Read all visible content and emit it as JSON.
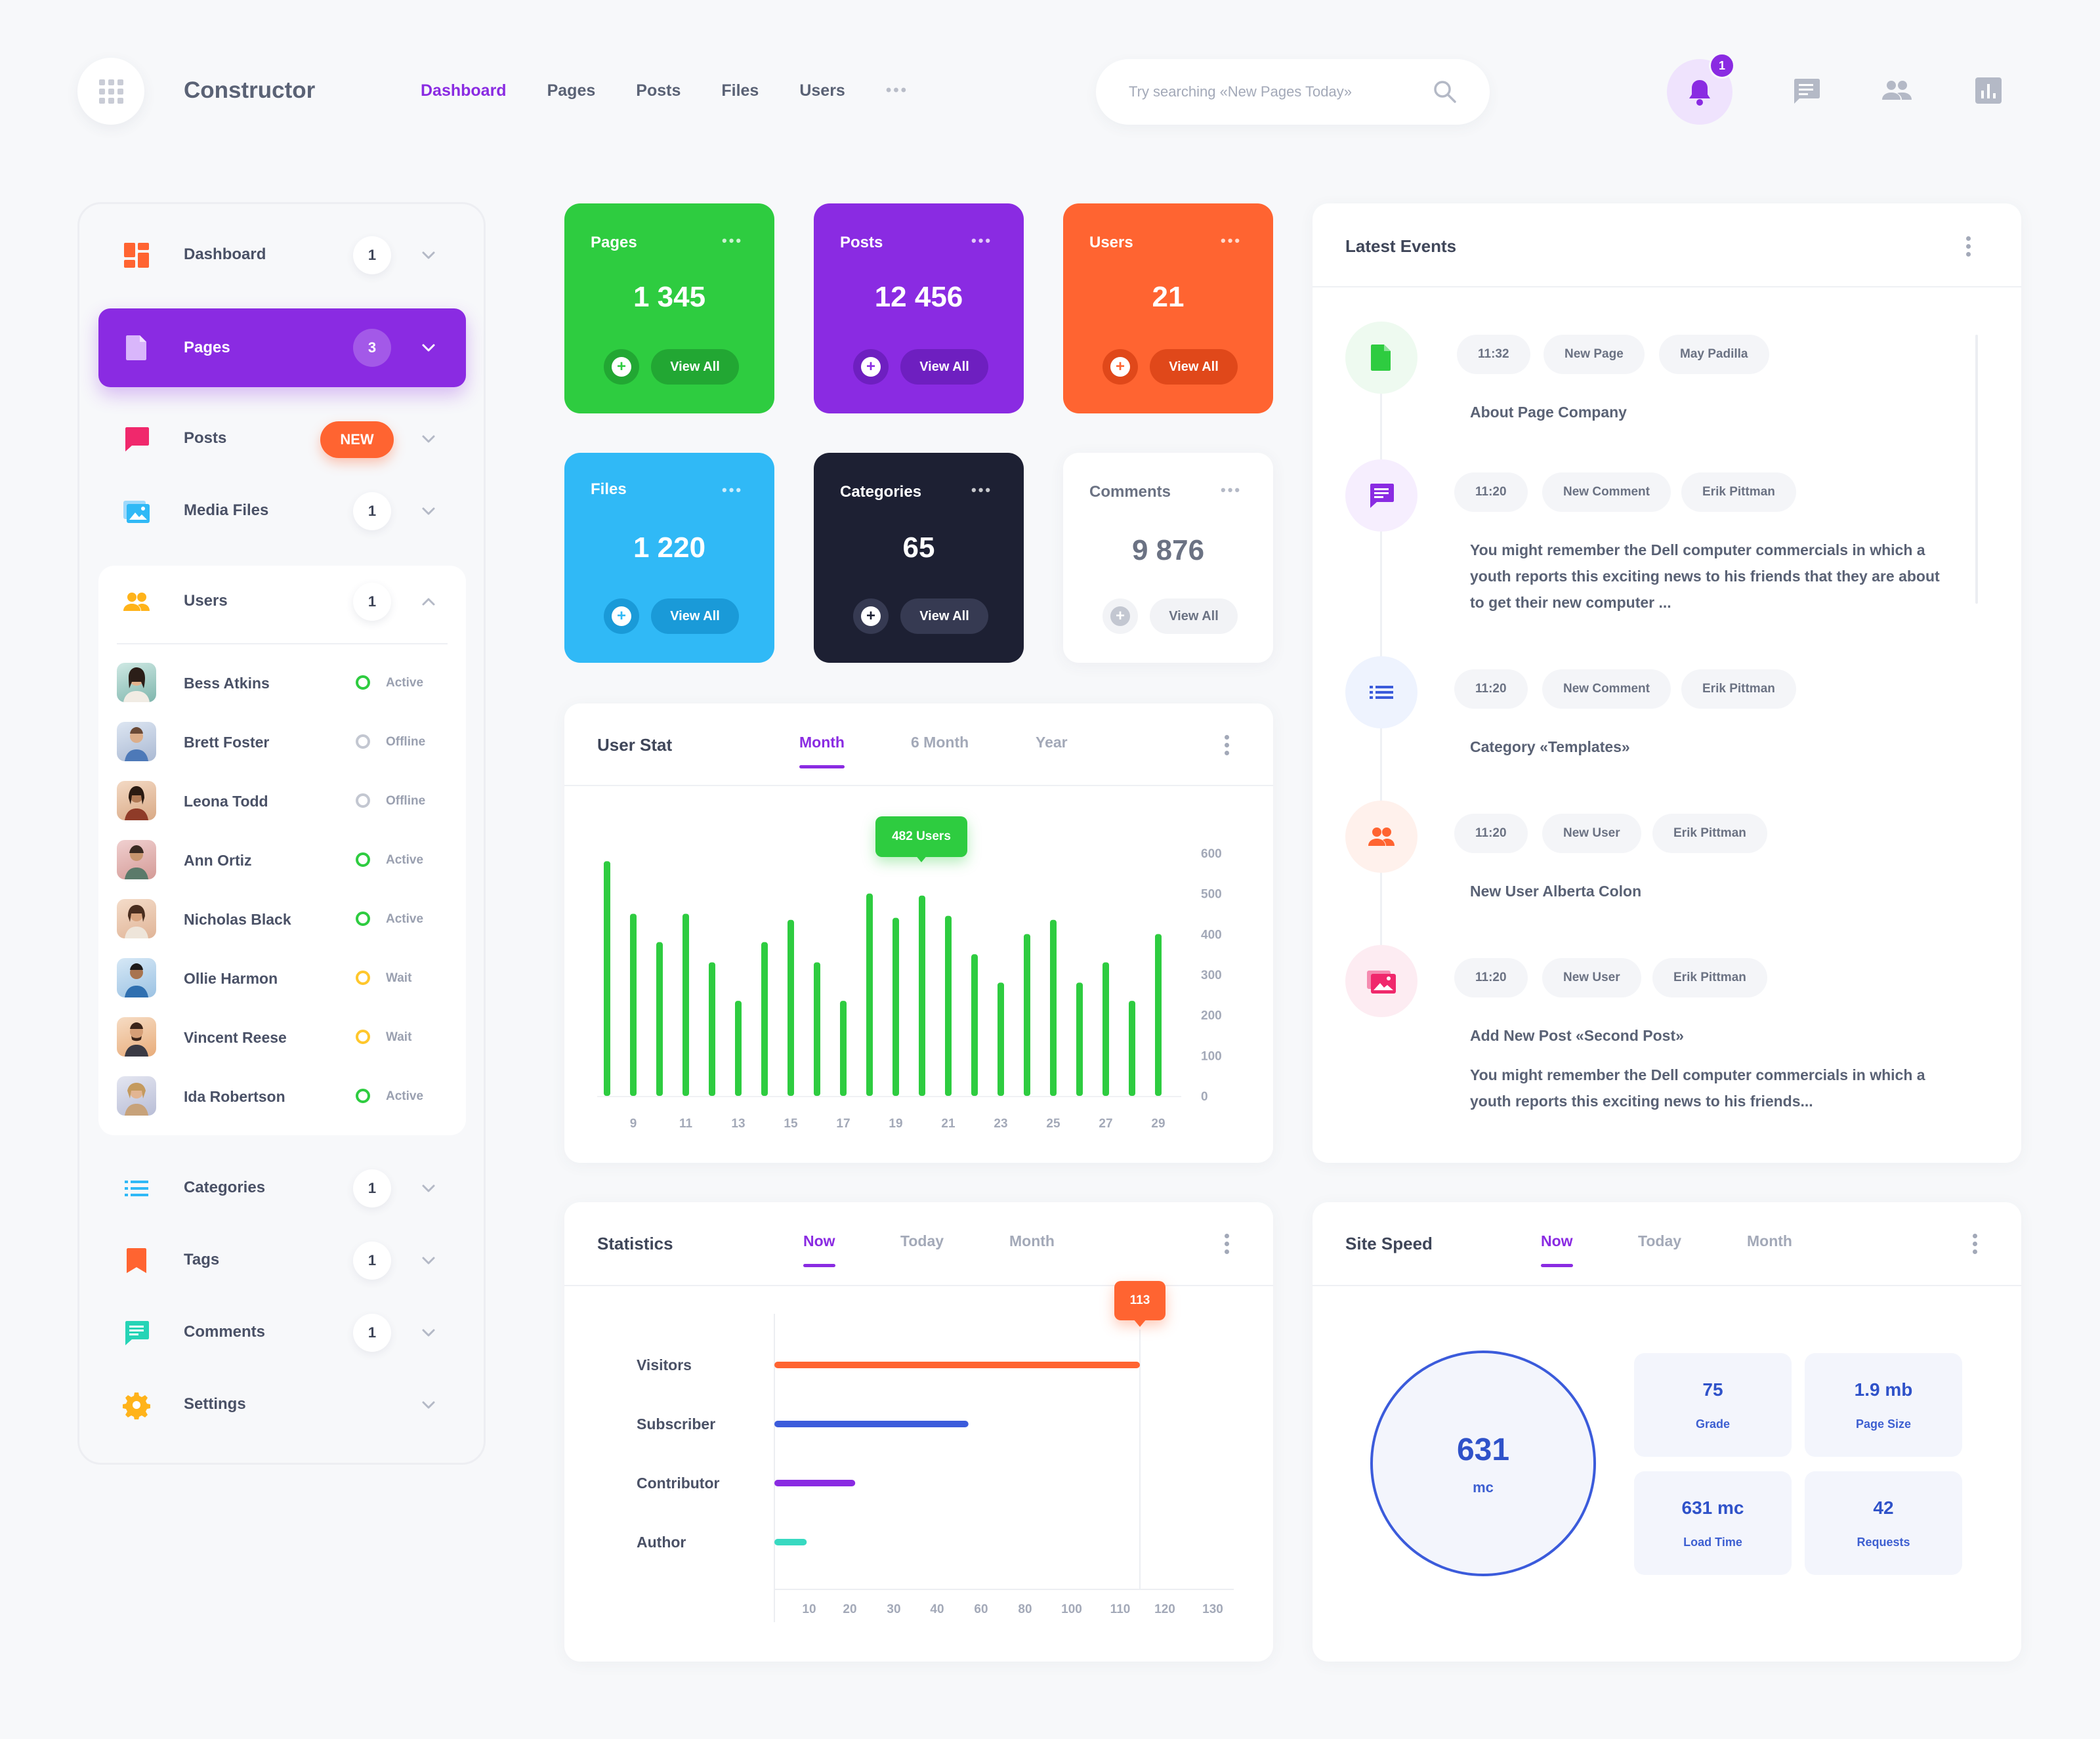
{
  "header": {
    "app_title": "Constructor",
    "nav": [
      {
        "label": "Dashboard",
        "active": true
      },
      {
        "label": "Pages",
        "active": false
      },
      {
        "label": "Posts",
        "active": false
      },
      {
        "label": "Files",
        "active": false
      },
      {
        "label": "Users",
        "active": false
      }
    ],
    "nav_more": "•••",
    "search_placeholder": "Try searching «New Pages Today»",
    "notification_count": "1",
    "accent": "#8a2be2"
  },
  "sidebar": {
    "items": [
      {
        "label": "Dashboard",
        "count": "1",
        "icon": "dashboard-icon"
      },
      {
        "label": "Pages",
        "count": "3",
        "icon": "page-icon",
        "active": true
      },
      {
        "label": "Posts",
        "badge": "NEW",
        "icon": "chat-bubble-icon"
      },
      {
        "label": "Media Files",
        "count": "1",
        "icon": "image-folder-icon"
      },
      {
        "label": "Users",
        "count": "1",
        "icon": "users-icon",
        "expanded": true
      },
      {
        "label": "Categories",
        "count": "1",
        "icon": "list-icon"
      },
      {
        "label": "Tags",
        "count": "1",
        "icon": "bookmark-icon"
      },
      {
        "label": "Comments",
        "count": "1",
        "icon": "comment-icon"
      },
      {
        "label": "Settings",
        "icon": "gear-icon"
      }
    ],
    "users": [
      {
        "name": "Bess Atkins",
        "status": "Active",
        "color": "#2ecc40"
      },
      {
        "name": "Brett Foster",
        "status": "Offline",
        "color": "#c3c7d1"
      },
      {
        "name": "Leona Todd",
        "status": "Offline",
        "color": "#c3c7d1"
      },
      {
        "name": "Ann Ortiz",
        "status": "Active",
        "color": "#2ecc40"
      },
      {
        "name": "Nicholas Black",
        "status": "Active",
        "color": "#2ecc40"
      },
      {
        "name": "Ollie Harmon",
        "status": "Wait",
        "color": "#ffc72c"
      },
      {
        "name": "Vincent Reese",
        "status": "Wait",
        "color": "#ffc72c"
      },
      {
        "name": "Ida Robertson",
        "status": "Active",
        "color": "#2ecc40"
      }
    ]
  },
  "stats": [
    {
      "title": "Pages",
      "value": "1 345",
      "action": "View All",
      "bg": "#2ecc40"
    },
    {
      "title": "Posts",
      "value": "12 456",
      "action": "View All",
      "bg": "#8a2be2"
    },
    {
      "title": "Users",
      "value": "21",
      "action": "View All",
      "bg": "#ff6431"
    },
    {
      "title": "Files",
      "value": "1 220",
      "action": "View All",
      "bg": "#30b9f6"
    },
    {
      "title": "Categories",
      "value": "65",
      "action": "View All",
      "bg": "#1d2033"
    },
    {
      "title": "Comments",
      "value": "9 876",
      "action": "View All",
      "bg": "#ffffff"
    }
  ],
  "user_stat": {
    "title": "User Stat",
    "tabs": [
      "Month",
      "6 Month",
      "Year"
    ],
    "active_tab": "Month",
    "tooltip": "482 Users"
  },
  "statistics": {
    "title": "Statistics",
    "tabs": [
      "Now",
      "Today",
      "Month"
    ],
    "tooltip": "113"
  },
  "events": {
    "title": "Latest Events",
    "items": [
      {
        "time": "11:32",
        "type": "New Page",
        "user": "May Padilla",
        "text": "About Page Company",
        "icon": "page-icon"
      },
      {
        "time": "11:20",
        "type": "New Comment",
        "user": "Erik Pittman",
        "text": "You might remember the Dell computer commercials in which a youth reports this exciting news to his friends that they are about to get their new computer ...",
        "icon": "comment-icon"
      },
      {
        "time": "11:20",
        "type": "New Comment",
        "user": "Erik Pittman",
        "text": "Category «Templates»",
        "icon": "list-icon"
      },
      {
        "time": "11:20",
        "type": "New User",
        "user": "Erik Pittman",
        "text": "New User Alberta Colon",
        "icon": "users-icon"
      },
      {
        "time": "11:20",
        "type": "New User",
        "user": "Erik Pittman",
        "text": "Add New Post «Second Post»",
        "text2": "You might remember the Dell computer commercials in which a youth reports this exciting news to his friends...",
        "icon": "image-folder-icon"
      }
    ]
  },
  "site_speed": {
    "title": "Site Speed",
    "tabs": [
      "Now",
      "Today",
      "Month"
    ],
    "value": "631",
    "unit": "mc",
    "boxes": [
      {
        "value": "75",
        "label": "Grade"
      },
      {
        "value": "1.9 mb",
        "label": "Page Size"
      },
      {
        "value": "631 mc",
        "label": "Load Time"
      },
      {
        "value": "42",
        "label": "Requests"
      }
    ]
  },
  "chart_data": [
    {
      "type": "bar",
      "x": [
        8,
        9,
        10,
        11,
        12,
        13,
        14,
        15,
        16,
        17,
        18,
        19,
        20,
        21,
        22,
        23,
        24,
        25,
        26,
        27,
        28,
        29
      ],
      "x_tick_labels": [
        "9",
        "11",
        "13",
        "15",
        "17",
        "19",
        "21",
        "23",
        "25",
        "27",
        "29"
      ],
      "values": [
        580,
        450,
        380,
        450,
        330,
        235,
        380,
        435,
        330,
        235,
        500,
        440,
        495,
        445,
        350,
        280,
        400,
        435,
        280,
        330,
        235,
        400
      ],
      "y_ticks": [
        "600",
        "500",
        "400",
        "300",
        "200",
        "100",
        "0"
      ],
      "ylim": [
        0,
        600
      ],
      "color": "#2ecc40"
    },
    {
      "type": "bar",
      "orientation": "horizontal",
      "categories": [
        "Visitors",
        "Subscriber",
        "Contributor",
        "Author"
      ],
      "values": [
        113,
        60,
        25,
        10
      ],
      "colors": [
        "#ff6431",
        "#3b5bdb",
        "#8a2be2",
        "#38d9c1"
      ],
      "x_ticks": [
        "10",
        "20",
        "30",
        "40",
        "60",
        "80",
        "100",
        "110",
        "120",
        "130"
      ],
      "marker": 113
    }
  ]
}
